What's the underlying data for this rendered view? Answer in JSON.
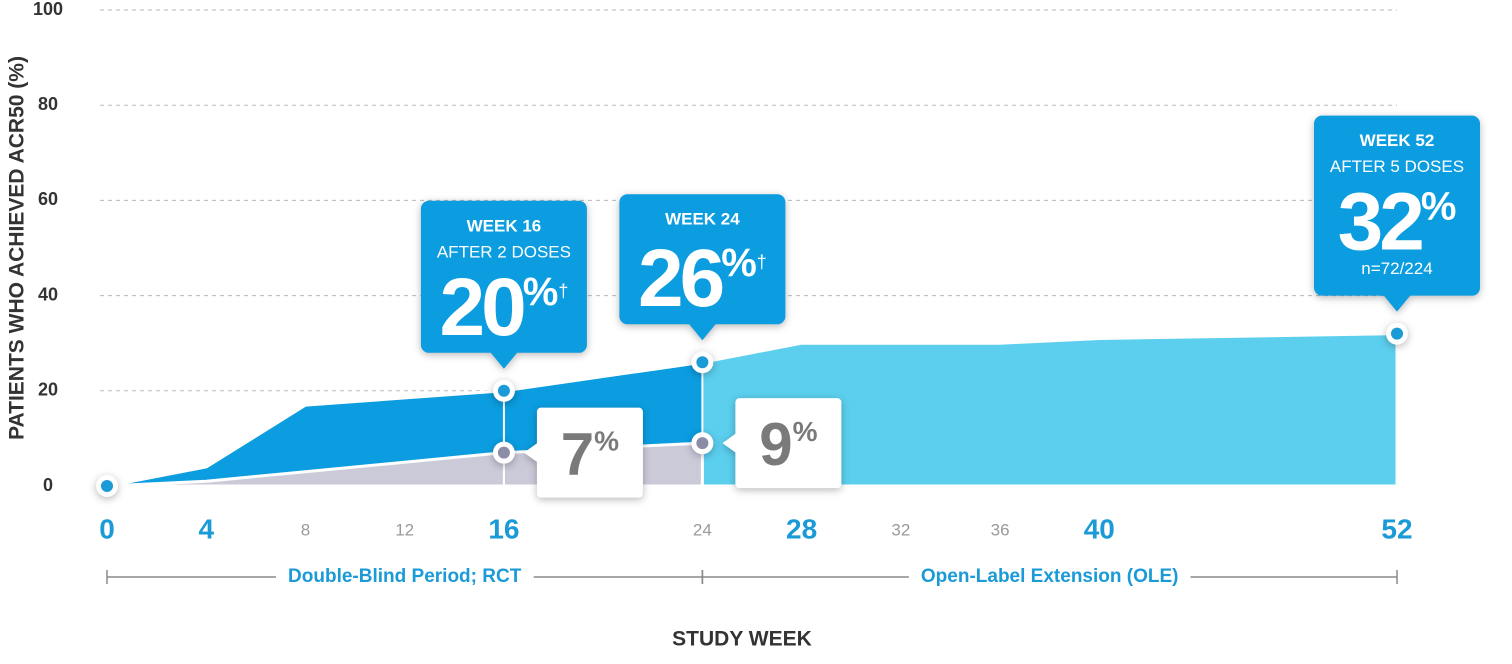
{
  "chart_data": {
    "type": "area",
    "xlabel": "STUDY WEEK",
    "ylabel": "PATIENTS WHO ACHIEVED ACR50 (%)",
    "xlim": [
      0,
      52
    ],
    "ylim": [
      0,
      100
    ],
    "xticks": [
      0,
      4,
      8,
      12,
      16,
      24,
      28,
      32,
      36,
      40,
      52
    ],
    "xticks_major": [
      true,
      true,
      false,
      false,
      true,
      false,
      true,
      false,
      false,
      true,
      true
    ],
    "yticks": [
      0,
      20,
      40,
      60,
      80,
      100
    ],
    "grid": true,
    "periods": [
      {
        "label": "Double-Blind Period; RCT",
        "range": [
          0,
          24
        ],
        "color": "#0b9de0"
      },
      {
        "label": "Open-Label Extension (OLE)",
        "range": [
          24,
          52
        ],
        "color": "#5ccfee"
      }
    ],
    "series": [
      {
        "color": "#0b9de0",
        "point_color": "#1a9ad6",
        "value_unit": "%",
        "x": [
          0,
          4,
          8,
          16,
          24,
          28,
          36,
          40,
          52
        ],
        "values": [
          0,
          4,
          17,
          20,
          26,
          30,
          30,
          31,
          32
        ],
        "markers": [
          true,
          false,
          false,
          true,
          true,
          false,
          false,
          false,
          true
        ],
        "callouts": [
          null,
          null,
          null,
          {
            "title": "WEEK 16",
            "subtitle": "AFTER 2 DOSES",
            "mark": "†"
          },
          {
            "title": "WEEK 24",
            "mark": "†"
          },
          null,
          null,
          null,
          {
            "title": "WEEK 52",
            "subtitle": "AFTER 5 DOSES",
            "note": "n=72/224"
          }
        ]
      },
      {
        "color": "#cbcad9",
        "point_color": "#8b8ca6",
        "value_unit": "%",
        "x": [
          0,
          4,
          16,
          24
        ],
        "values": [
          0,
          1,
          7,
          9
        ],
        "markers": [
          false,
          false,
          true,
          true
        ],
        "labeled": [
          false,
          false,
          true,
          true
        ]
      }
    ]
  }
}
